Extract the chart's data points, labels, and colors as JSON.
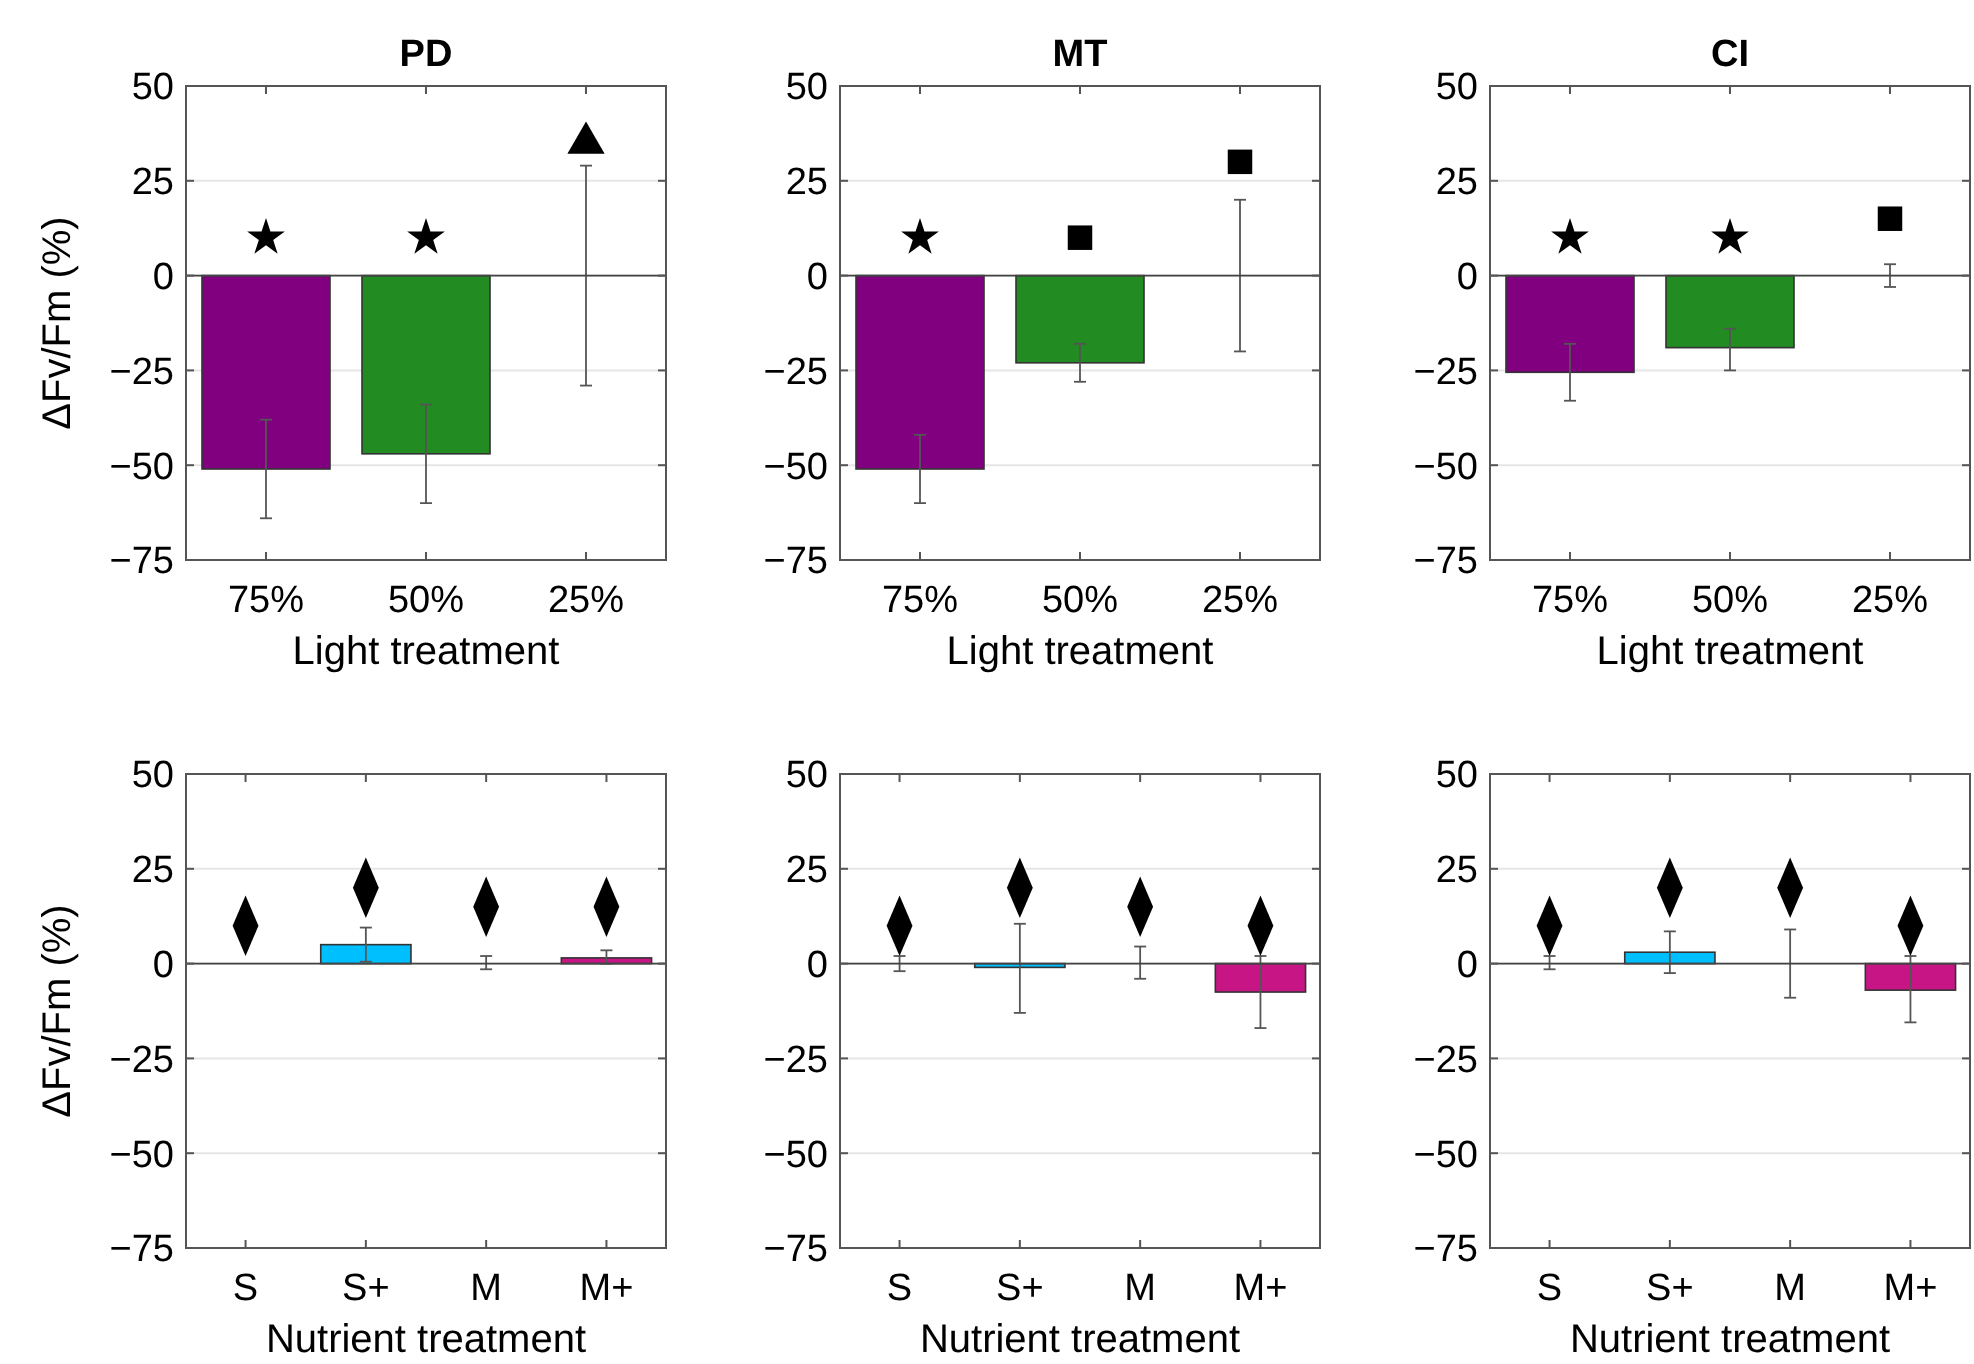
{
  "chart_data": [
    {
      "type": "bar",
      "title": "PD",
      "xlabel": "Light treatment",
      "ylabel": "ΔFv/Fm (%)",
      "categories": [
        "75%",
        "50%",
        "25%"
      ],
      "ylim": [
        -75,
        50
      ],
      "yticks": [
        -75,
        -50,
        -25,
        0,
        25,
        50
      ],
      "grid": "y",
      "series": [
        {
          "type": "bar",
          "values": [
            -51,
            -47,
            0
          ],
          "colors": [
            "#800080",
            "#228b22",
            "#808080"
          ],
          "errors": [
            [
              -64,
              -38
            ],
            [
              -60,
              -34
            ],
            [
              -29,
              29
            ]
          ]
        },
        {
          "type": "scatter",
          "marker": "star",
          "color": "#000000",
          "x": [
            "75%",
            "50%"
          ],
          "values": [
            10,
            10
          ]
        },
        {
          "type": "scatter",
          "marker": "triangle",
          "color": "#000000",
          "x": [
            "25%"
          ],
          "values": [
            35
          ]
        }
      ]
    },
    {
      "type": "bar",
      "title": "MT",
      "xlabel": "Light treatment",
      "categories": [
        "75%",
        "50%",
        "25%"
      ],
      "ylim": [
        -75,
        50
      ],
      "yticks": [
        -75,
        -50,
        -25,
        0,
        25,
        50
      ],
      "grid": "y",
      "series": [
        {
          "type": "bar",
          "values": [
            -51,
            -23,
            0
          ],
          "colors": [
            "#800080",
            "#228b22",
            "#808080"
          ],
          "errors": [
            [
              -60,
              -42
            ],
            [
              -28,
              -18
            ],
            [
              -20,
              20
            ]
          ]
        },
        {
          "type": "scatter",
          "marker": "star",
          "color": "#000000",
          "x": [
            "75%"
          ],
          "values": [
            10
          ]
        },
        {
          "type": "scatter",
          "marker": "square",
          "color": "#000000",
          "x": [
            "50%",
            "25%"
          ],
          "values": [
            10,
            30
          ]
        }
      ]
    },
    {
      "type": "bar",
      "title": "CI",
      "xlabel": "Light treatment",
      "categories": [
        "75%",
        "50%",
        "25%"
      ],
      "ylim": [
        -75,
        50
      ],
      "yticks": [
        -75,
        -50,
        -25,
        0,
        25,
        50
      ],
      "grid": "y",
      "series": [
        {
          "type": "bar",
          "values": [
            -25.5,
            -19,
            0
          ],
          "colors": [
            "#800080",
            "#228b22",
            "#808080"
          ],
          "errors": [
            [
              -33,
              -18
            ],
            [
              -25,
              -14
            ],
            [
              -3,
              3
            ]
          ]
        },
        {
          "type": "scatter",
          "marker": "star",
          "color": "#000000",
          "x": [
            "75%",
            "50%"
          ],
          "values": [
            10,
            10
          ]
        },
        {
          "type": "scatter",
          "marker": "square",
          "color": "#000000",
          "x": [
            "25%"
          ],
          "values": [
            15
          ]
        }
      ]
    },
    {
      "type": "bar",
      "xlabel": "Nutrient treatment",
      "ylabel": "ΔFv/Fm (%)",
      "categories": [
        "S",
        "S+",
        "M",
        "M+"
      ],
      "ylim": [
        -75,
        50
      ],
      "yticks": [
        -75,
        -50,
        -25,
        0,
        25,
        50
      ],
      "grid": "y",
      "series": [
        {
          "type": "bar",
          "values": [
            0,
            5,
            0,
            1.5
          ],
          "colors": [
            "#808080",
            "#00bfff",
            "#808080",
            "#c71585"
          ],
          "errors": [
            null,
            [
              0.5,
              9.5
            ],
            [
              -1.5,
              2
            ],
            [
              0,
              3.5
            ]
          ]
        },
        {
          "type": "scatter",
          "marker": "diamond",
          "color": "#000000",
          "x": [
            "S",
            "S+",
            "M",
            "M+"
          ],
          "values": [
            10,
            20,
            15,
            15
          ]
        }
      ]
    },
    {
      "type": "bar",
      "xlabel": "Nutrient treatment",
      "categories": [
        "S",
        "S+",
        "M",
        "M+"
      ],
      "ylim": [
        -75,
        50
      ],
      "yticks": [
        -75,
        -50,
        -25,
        0,
        25,
        50
      ],
      "grid": "y",
      "series": [
        {
          "type": "bar",
          "values": [
            0,
            -1,
            0,
            -7.5
          ],
          "colors": [
            "#808080",
            "#00bfff",
            "#808080",
            "#c71585"
          ],
          "errors": [
            [
              -2,
              2
            ],
            [
              -13,
              10.5
            ],
            [
              -4,
              4.5
            ],
            [
              -17,
              2
            ]
          ]
        },
        {
          "type": "scatter",
          "marker": "diamond",
          "color": "#000000",
          "x": [
            "S",
            "S+",
            "M",
            "M+"
          ],
          "values": [
            10,
            20,
            15,
            10
          ]
        }
      ]
    },
    {
      "type": "bar",
      "xlabel": "Nutrient treatment",
      "categories": [
        "S",
        "S+",
        "M",
        "M+"
      ],
      "ylim": [
        -75,
        50
      ],
      "yticks": [
        -75,
        -50,
        -25,
        0,
        25,
        50
      ],
      "grid": "y",
      "series": [
        {
          "type": "bar",
          "values": [
            0,
            3,
            0,
            -7
          ],
          "colors": [
            "#808080",
            "#00bfff",
            "#808080",
            "#c71585"
          ],
          "errors": [
            [
              -1.5,
              2
            ],
            [
              -2.5,
              8.5
            ],
            [
              -9,
              9
            ],
            [
              -15.5,
              2
            ]
          ]
        },
        {
          "type": "scatter",
          "marker": "diamond",
          "color": "#000000",
          "x": [
            "S",
            "S+",
            "M",
            "M+"
          ],
          "values": [
            10,
            20,
            20,
            10
          ]
        }
      ]
    }
  ]
}
